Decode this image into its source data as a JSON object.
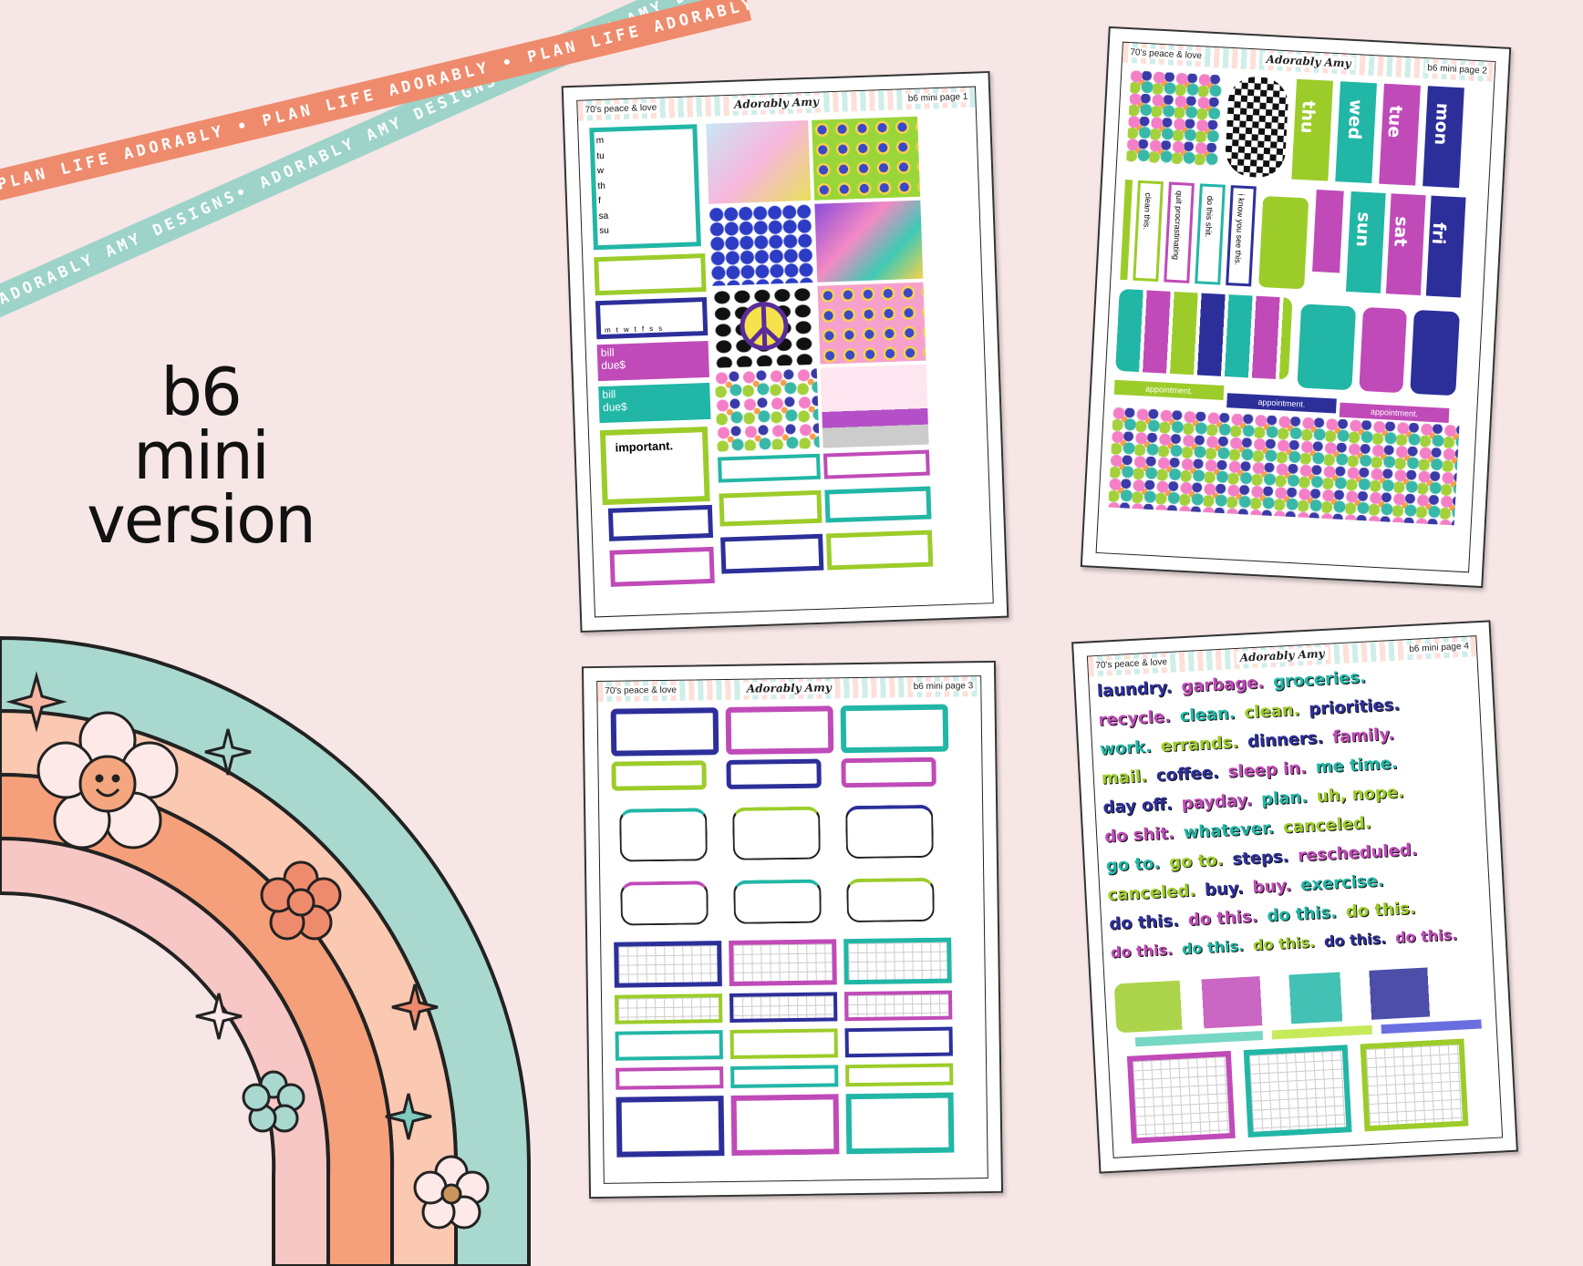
{
  "ribbons": [
    {
      "text": "PLAN LIFE ADORABLY • PLAN LIFE ADORABLY • PLAN LIFE ADORABLY •"
    },
    {
      "text": "ADORABLY AMY DESIGNS• ADORABLY AMY DESIGNS• ADORABLY AMY DESIGNS•"
    }
  ],
  "headline": {
    "line1": "b6",
    "line2": "mini",
    "line3": "version"
  },
  "brand": "Adorably Amy",
  "theme": "70's peace & love",
  "colors": {
    "teal": "#22b6a6",
    "navy": "#2c2f9a",
    "lime": "#9ccc2a",
    "magenta": "#c04bb8",
    "coral": "#ef8b6d",
    "mint": "#9dd3c9"
  },
  "page1": {
    "label": "b6 mini page 1",
    "days": [
      "m",
      "tu",
      "w",
      "th",
      "f",
      "sa",
      "su"
    ],
    "habit_letters": [
      "m",
      "t",
      "w",
      "t",
      "f",
      "s",
      "s"
    ],
    "bill": "bill",
    "due": "due",
    "dollar": "$",
    "important": "important."
  },
  "page2": {
    "label": "b6 mini page 2",
    "days_top": [
      "thu",
      "wed",
      "tue",
      "mon"
    ],
    "days_bottom": [
      "sun",
      "sat",
      "fri"
    ],
    "vertical_phrases": [
      "clean this.",
      "quit procrastinating",
      "do this shit.",
      "i know you see this."
    ],
    "appointment": "appointment."
  },
  "page3": {
    "label": "b6 mini page 3"
  },
  "page4": {
    "label": "b6 mini page 4",
    "words": [
      [
        "laundry.",
        "garbage.",
        "groceries."
      ],
      [
        "recycle.",
        "clean.",
        "clean.",
        "priorities."
      ],
      [
        "work.",
        "errands.",
        "dinners.",
        "family."
      ],
      [
        "mail.",
        "coffee.",
        "sleep in.",
        "me time."
      ],
      [
        "day off.",
        "payday.",
        "plan.",
        "uh, nope."
      ],
      [
        "do shit.",
        "whatever.",
        "canceled."
      ],
      [
        "go to.",
        "go to.",
        "steps.",
        "rescheduled."
      ],
      [
        "canceled.",
        "buy.",
        "buy.",
        "exercise."
      ],
      [
        "do this.",
        "do this.",
        "do this.",
        "do this."
      ],
      [
        "do this.",
        "do this.",
        "do this.",
        "do this.",
        "do this."
      ]
    ]
  }
}
